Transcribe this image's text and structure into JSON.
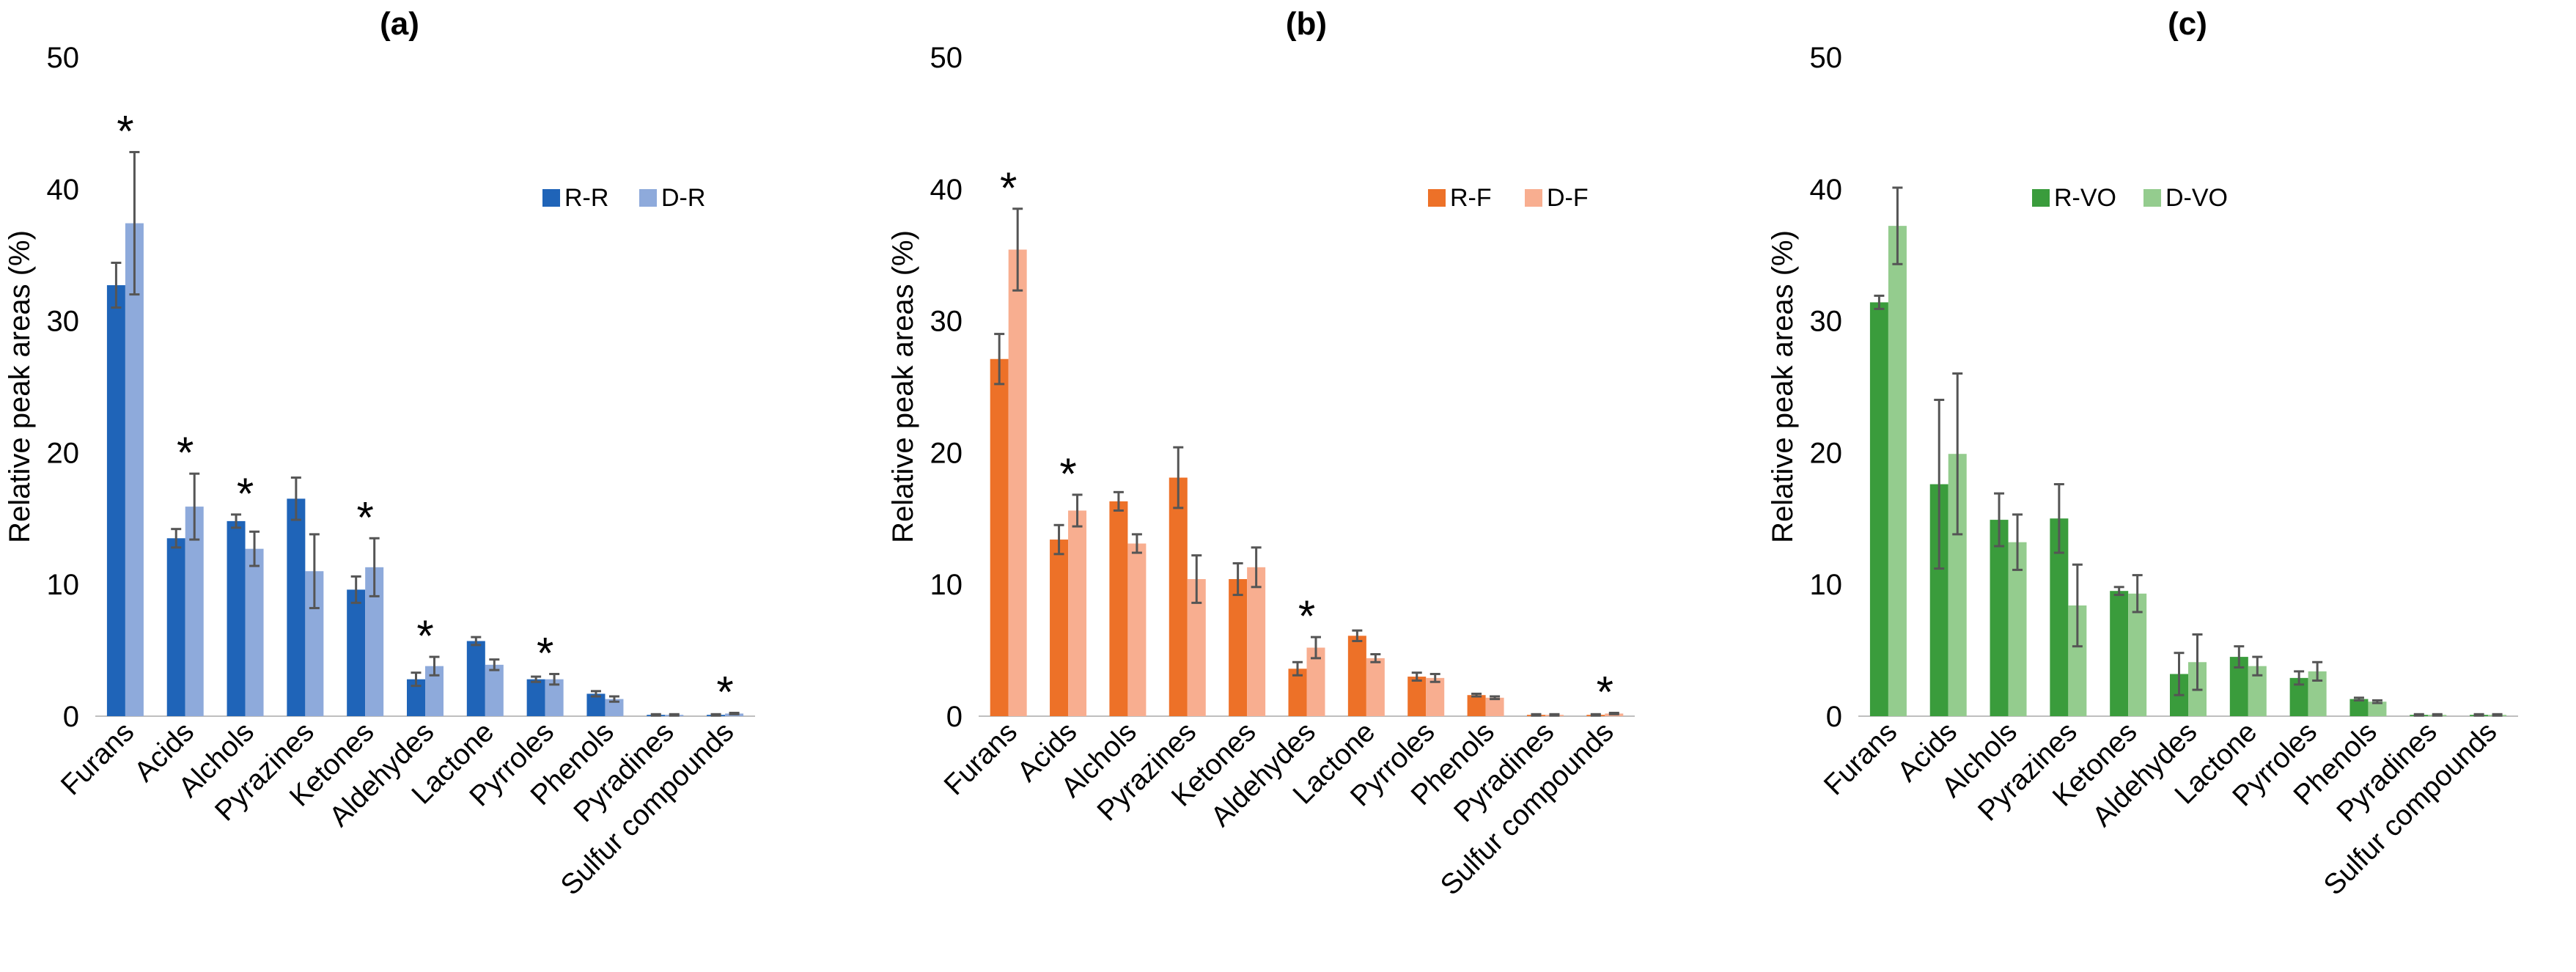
{
  "chart_data": [
    {
      "type": "bar",
      "title": "(a)",
      "xlabel": "",
      "ylabel": "Relative peak areas (%)",
      "ylim": [
        0,
        50
      ],
      "yticks": [
        "0",
        "10",
        "20",
        "30",
        "40",
        "50"
      ],
      "grid": false,
      "legend_position": "top-right",
      "categories": [
        "Furans",
        "Acids",
        "Alchols",
        "Pyrazines",
        "Ketones",
        "Aldehydes",
        "Lactone",
        "Pyrroles",
        "Phenols",
        "Pyradines",
        "Sulfur compounds"
      ],
      "series": [
        {
          "name": "R-R",
          "color": "#1f64b8",
          "values": [
            32.7,
            13.5,
            14.8,
            16.5,
            9.6,
            2.8,
            5.7,
            2.8,
            1.7,
            0.1,
            0.1
          ],
          "errors": [
            1.7,
            0.7,
            0.5,
            1.6,
            1.0,
            0.5,
            0.3,
            0.2,
            0.2,
            0.05,
            0.05
          ]
        },
        {
          "name": "D-R",
          "color": "#8eaadb",
          "values": [
            37.4,
            15.9,
            12.7,
            11.0,
            11.3,
            3.8,
            3.9,
            2.8,
            1.3,
            0.1,
            0.2
          ],
          "errors": [
            5.4,
            2.5,
            1.3,
            2.8,
            2.2,
            0.7,
            0.4,
            0.4,
            0.2,
            0.05,
            0.05
          ]
        }
      ],
      "significance_markers": [
        "*",
        "*",
        "*",
        "",
        "*",
        "*",
        "",
        "*",
        "",
        "",
        "*"
      ]
    },
    {
      "type": "bar",
      "title": "(b)",
      "xlabel": "",
      "ylabel": "Relative peak areas (%)",
      "ylim": [
        0,
        50
      ],
      "yticks": [
        "0",
        "10",
        "20",
        "30",
        "40",
        "50"
      ],
      "grid": false,
      "legend_position": "top-right",
      "categories": [
        "Furans",
        "Acids",
        "Alchols",
        "Pyrazines",
        "Ketones",
        "Aldehydes",
        "Lactone",
        "Pyrroles",
        "Phenols",
        "Pyradines",
        "Sulfur compounds"
      ],
      "series": [
        {
          "name": "R-F",
          "color": "#ed7128",
          "values": [
            27.1,
            13.4,
            16.3,
            18.1,
            10.4,
            3.6,
            6.1,
            3.0,
            1.6,
            0.1,
            0.1
          ],
          "errors": [
            1.9,
            1.1,
            0.7,
            2.3,
            1.2,
            0.5,
            0.4,
            0.3,
            0.1,
            0.05,
            0.05
          ]
        },
        {
          "name": "D-F",
          "color": "#f8ae90",
          "values": [
            35.4,
            15.6,
            13.1,
            10.4,
            11.3,
            5.2,
            4.4,
            2.9,
            1.4,
            0.1,
            0.2
          ],
          "errors": [
            3.1,
            1.2,
            0.7,
            1.8,
            1.5,
            0.8,
            0.3,
            0.3,
            0.1,
            0.05,
            0.05
          ]
        }
      ],
      "significance_markers": [
        "*",
        "*",
        "",
        "",
        "",
        "*",
        "",
        "",
        "",
        "",
        "*"
      ]
    },
    {
      "type": "bar",
      "title": "(c)",
      "xlabel": "",
      "ylabel": "Relative peak areas (%)",
      "ylim": [
        0,
        50
      ],
      "yticks": [
        "0",
        "10",
        "20",
        "30",
        "40",
        "50"
      ],
      "grid": false,
      "legend_position": "top-right",
      "categories": [
        "Furans",
        "Acids",
        "Alchols",
        "Pyrazines",
        "Ketones",
        "Aldehydes",
        "Lactone",
        "Pyrroles",
        "Phenols",
        "Pyradines",
        "Sulfur compounds"
      ],
      "series": [
        {
          "name": "R-VO",
          "color": "#3a9c3c",
          "values": [
            31.4,
            17.6,
            14.9,
            15.0,
            9.5,
            3.2,
            4.5,
            2.9,
            1.3,
            0.1,
            0.1
          ],
          "errors": [
            0.5,
            6.4,
            2.0,
            2.6,
            0.3,
            1.6,
            0.8,
            0.5,
            0.1,
            0.05,
            0.05
          ]
        },
        {
          "name": "D-VO",
          "color": "#94cc8e",
          "values": [
            37.2,
            19.9,
            13.2,
            8.4,
            9.3,
            4.1,
            3.8,
            3.4,
            1.1,
            0.1,
            0.1
          ],
          "errors": [
            2.9,
            6.1,
            2.1,
            3.1,
            1.4,
            2.1,
            0.7,
            0.7,
            0.1,
            0.05,
            0.05
          ]
        }
      ],
      "significance_markers": [
        "",
        "",
        "",
        "",
        "",
        "",
        "",
        "",
        "",
        "",
        ""
      ]
    }
  ]
}
